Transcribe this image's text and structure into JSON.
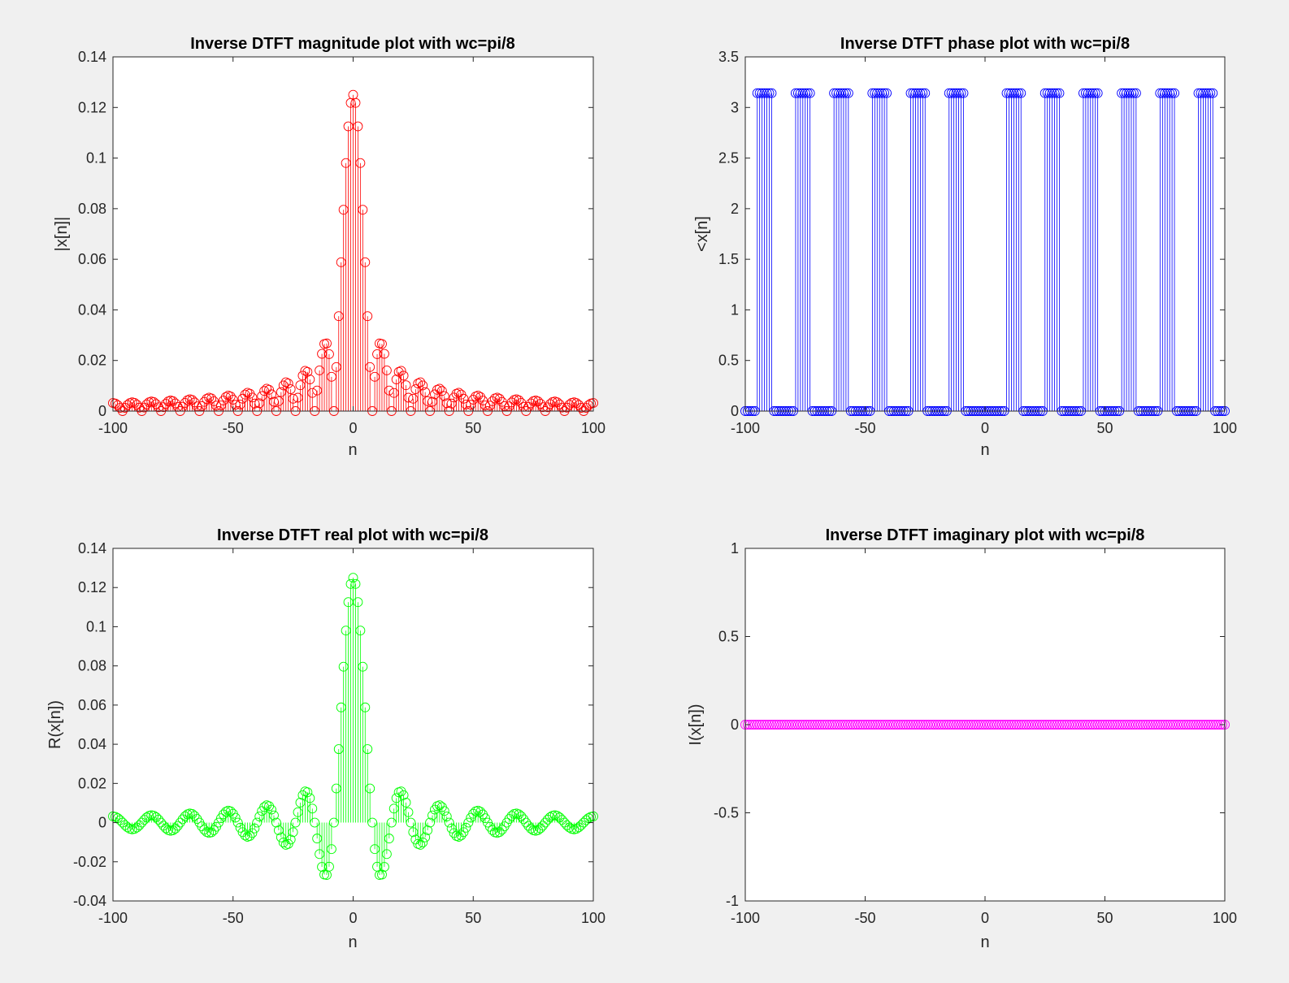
{
  "figure": {
    "background": "#f0f0f0"
  },
  "chart_data": [
    {
      "id": "magnitude",
      "type": "stem",
      "title": "Inverse DTFT magnitude plot with wc=pi/8",
      "xlabel": "n",
      "ylabel": "|x[n]|",
      "xlim": [
        -100,
        100
      ],
      "ylim": [
        0,
        0.14
      ],
      "xticks": [
        -100,
        -50,
        0,
        50,
        100
      ],
      "xtick_labels": [
        "-100",
        "-50",
        "0",
        "50",
        "100"
      ],
      "yticks": [
        0,
        0.02,
        0.04,
        0.06,
        0.08,
        0.1,
        0.12,
        0.14
      ],
      "ytick_labels": [
        "0",
        "0.02",
        "0.04",
        "0.06",
        "0.08",
        "0.1",
        "0.12",
        "0.14"
      ],
      "color": "#ff0000",
      "marker": "circle",
      "grid": false,
      "series": [
        {
          "name": "",
          "signal": "abs(sin(pi*n/8)/(pi*n)), n=-100..100",
          "x_range": [
            -100,
            100
          ],
          "step": 1,
          "peak": 0.125
        }
      ]
    },
    {
      "id": "phase",
      "type": "stem",
      "title": "Inverse DTFT phase plot with wc=pi/8",
      "xlabel": "n",
      "ylabel": "<x[n]",
      "xlim": [
        -100,
        100
      ],
      "ylim": [
        0,
        3.5
      ],
      "xticks": [
        -100,
        -50,
        0,
        50,
        100
      ],
      "xtick_labels": [
        "-100",
        "-50",
        "0",
        "50",
        "100"
      ],
      "yticks": [
        0,
        0.5,
        1,
        1.5,
        2,
        2.5,
        3,
        3.5
      ],
      "ytick_labels": [
        "0",
        "0.5",
        "1",
        "1.5",
        "2",
        "2.5",
        "3",
        "3.5"
      ],
      "color": "#0000ff",
      "marker": "circle",
      "grid": false,
      "series": [
        {
          "name": "",
          "signal": "angle(sin(pi*n/8)/(pi*n)): 0 or 3.1416, n=-100..100",
          "x_range": [
            -100,
            100
          ],
          "step": 1,
          "values_set": [
            0,
            3.1416
          ]
        }
      ]
    },
    {
      "id": "real",
      "type": "stem",
      "title": "Inverse DTFT real plot with wc=pi/8",
      "xlabel": "n",
      "ylabel": "R(x[n])",
      "xlim": [
        -100,
        100
      ],
      "ylim": [
        -0.04,
        0.14
      ],
      "xticks": [
        -100,
        -50,
        0,
        50,
        100
      ],
      "xtick_labels": [
        "-100",
        "-50",
        "0",
        "50",
        "100"
      ],
      "yticks": [
        -0.04,
        -0.02,
        0,
        0.02,
        0.04,
        0.06,
        0.08,
        0.1,
        0.12,
        0.14
      ],
      "ytick_labels": [
        "-0.04",
        "-0.02",
        "0",
        "0.02",
        "0.04",
        "0.06",
        "0.08",
        "0.1",
        "0.12",
        "0.14"
      ],
      "color": "#00ff00",
      "marker": "circle",
      "grid": false,
      "series": [
        {
          "name": "",
          "signal": "sin(pi*n/8)/(pi*n), n=-100..100",
          "x_range": [
            -100,
            100
          ],
          "step": 1,
          "peak": 0.125
        }
      ]
    },
    {
      "id": "imaginary",
      "type": "stem",
      "title": "Inverse DTFT imaginary plot with wc=pi/8",
      "xlabel": "n",
      "ylabel": "I(x[n])",
      "xlim": [
        -100,
        100
      ],
      "ylim": [
        -1,
        1
      ],
      "xticks": [
        -100,
        -50,
        0,
        50,
        100
      ],
      "xtick_labels": [
        "-100",
        "-50",
        "0",
        "50",
        "100"
      ],
      "yticks": [
        -1,
        -0.5,
        0,
        0.5,
        1
      ],
      "ytick_labels": [
        "-1",
        "-0.5",
        "0",
        "0.5",
        "1"
      ],
      "color": "#ff00ff",
      "marker": "circle",
      "grid": false,
      "series": [
        {
          "name": "",
          "signal": "0 for all n=-100..100",
          "x_range": [
            -100,
            100
          ],
          "step": 1,
          "constant": 0
        }
      ]
    }
  ]
}
